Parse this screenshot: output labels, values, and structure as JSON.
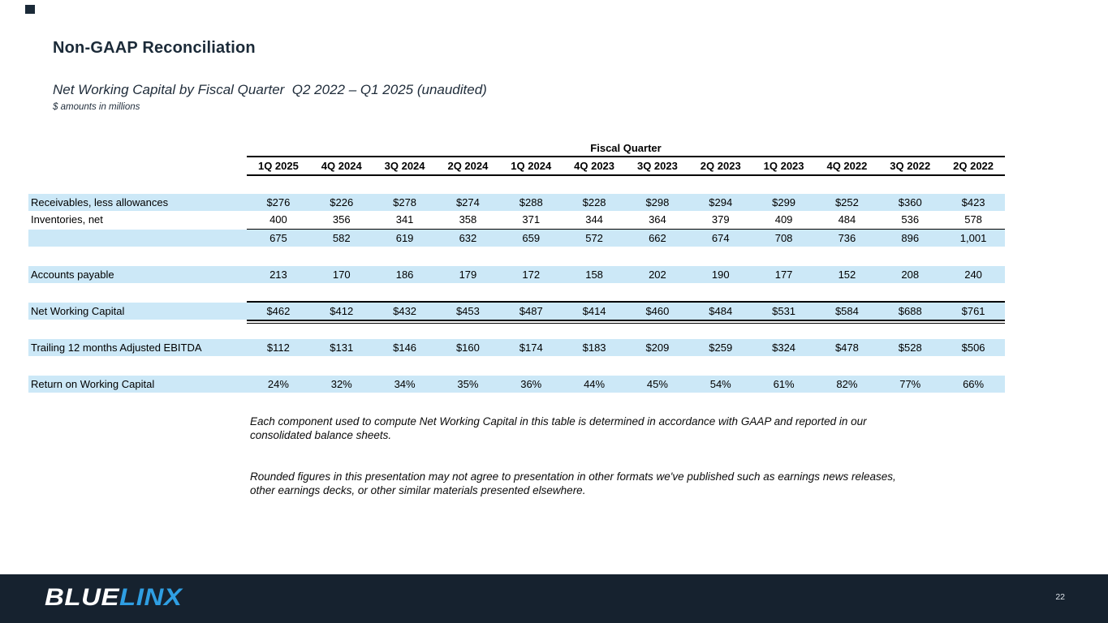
{
  "slide": {
    "title": "Non-GAAP Reconciliation",
    "subtitle": "Net Working Capital by Fiscal Quarter  Q2 2022 – Q1 2025 (unaudited)",
    "units_note": "$ amounts in millions",
    "page_number": "22"
  },
  "table": {
    "group_header": "Fiscal Quarter",
    "columns": [
      "1Q 2025",
      "4Q 2024",
      "3Q 2024",
      "2Q 2024",
      "1Q 2024",
      "4Q 2023",
      "3Q 2023",
      "2Q 2023",
      "1Q 2023",
      "4Q 2022",
      "3Q 2022",
      "2Q 2022"
    ],
    "rows": [
      {
        "label": "Receivables, less allowances",
        "values": [
          "$276",
          "$226",
          "$278",
          "$274",
          "$288",
          "$228",
          "$298",
          "$294",
          "$299",
          "$252",
          "$360",
          "$423"
        ]
      },
      {
        "label": "Inventories, net",
        "values": [
          "400",
          "356",
          "341",
          "358",
          "371",
          "344",
          "364",
          "379",
          "409",
          "484",
          "536",
          "578"
        ]
      },
      {
        "label": "",
        "values": [
          "675",
          "582",
          "619",
          "632",
          "659",
          "572",
          "662",
          "674",
          "708",
          "736",
          "896",
          "1,001"
        ]
      },
      {
        "label": "Accounts payable",
        "values": [
          "213",
          "170",
          "186",
          "179",
          "172",
          "158",
          "202",
          "190",
          "177",
          "152",
          "208",
          "240"
        ]
      },
      {
        "label": "Net Working Capital",
        "values": [
          "$462",
          "$412",
          "$432",
          "$453",
          "$487",
          "$414",
          "$460",
          "$484",
          "$531",
          "$584",
          "$688",
          "$761"
        ]
      },
      {
        "label": "Trailing 12 months Adjusted EBITDA",
        "values": [
          "$112",
          "$131",
          "$146",
          "$160",
          "$174",
          "$183",
          "$209",
          "$259",
          "$324",
          "$478",
          "$528",
          "$506"
        ]
      },
      {
        "label": "Return on Working Capital",
        "values": [
          "24%",
          "32%",
          "34%",
          "35%",
          "36%",
          "44%",
          "45%",
          "54%",
          "61%",
          "82%",
          "77%",
          "66%"
        ]
      }
    ]
  },
  "footnotes": [
    {
      "lines": [
        "Each component used to compute Net Working Capital in this table is determined in accordance with GAAP and reported in our",
        "consolidated balance sheets."
      ]
    },
    {
      "lines": [
        "Rounded figures in this presentation may not agree to presentation in other formats we've published such as earnings news releases,",
        "other earnings decks, or other similar materials presented elsewhere."
      ]
    }
  ],
  "footer": {
    "logo_part1": "BLUE",
    "logo_part2": "LINX"
  },
  "colors": {
    "accent_navy": "#1b2a38",
    "row_highlight": "#cce8f7",
    "footer_bg": "#16222f",
    "logo_blue": "#2f9fe3"
  }
}
